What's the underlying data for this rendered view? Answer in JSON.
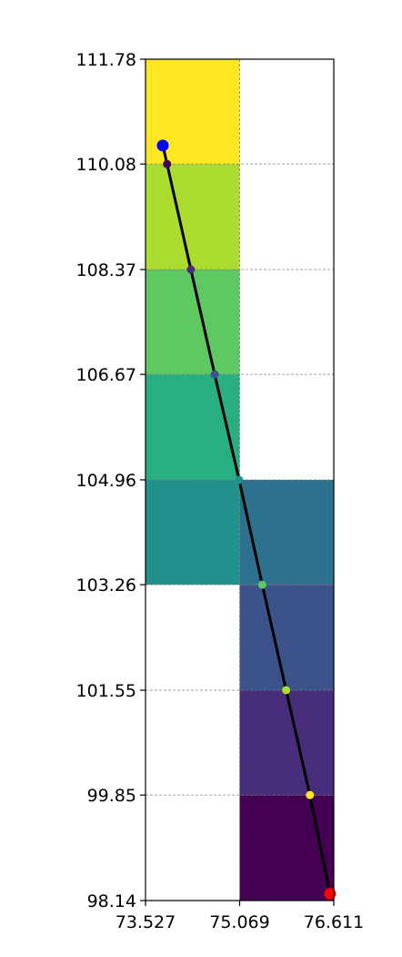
{
  "chart_data": {
    "type": "heatmap",
    "title": "",
    "xlabel": "",
    "ylabel": "",
    "xlim": [
      73.527,
      76.611
    ],
    "ylim": [
      98.14,
      111.78
    ],
    "x_ticks": [
      "73.527",
      "75.069",
      "76.611"
    ],
    "y_ticks": [
      "98.14",
      "99.85",
      "101.55",
      "103.26",
      "104.96",
      "106.67",
      "108.37",
      "110.08",
      "111.78"
    ],
    "x_tick_values": [
      73.527,
      75.069,
      76.611
    ],
    "y_tick_values": [
      98.14,
      99.85,
      101.55,
      103.26,
      104.96,
      106.67,
      108.37,
      110.08,
      111.78
    ],
    "grid": true,
    "cells": [
      {
        "col": 0,
        "y_from": 110.08,
        "y_to": 111.78,
        "color": "#fde725"
      },
      {
        "col": 0,
        "y_from": 108.37,
        "y_to": 110.08,
        "color": "#addc30"
      },
      {
        "col": 0,
        "y_from": 106.67,
        "y_to": 108.37,
        "color": "#5ec962"
      },
      {
        "col": 0,
        "y_from": 104.96,
        "y_to": 106.67,
        "color": "#28ae80"
      },
      {
        "col": 0,
        "y_from": 103.26,
        "y_to": 104.96,
        "color": "#21918c"
      },
      {
        "col": 1,
        "y_from": 103.26,
        "y_to": 104.96,
        "color": "#2c728e"
      },
      {
        "col": 1,
        "y_from": 101.55,
        "y_to": 103.26,
        "color": "#3b528b"
      },
      {
        "col": 1,
        "y_from": 99.85,
        "y_to": 101.55,
        "color": "#472d7b"
      },
      {
        "col": 1,
        "y_from": 98.14,
        "y_to": 99.85,
        "color": "#440154"
      }
    ],
    "path": {
      "color": "#000000",
      "points": [
        {
          "x": 73.81,
          "y": 110.38
        },
        {
          "x": 73.88,
          "y": 110.08
        },
        {
          "x": 74.27,
          "y": 108.37
        },
        {
          "x": 74.66,
          "y": 106.67
        },
        {
          "x": 75.06,
          "y": 104.96
        },
        {
          "x": 75.44,
          "y": 103.26
        },
        {
          "x": 75.83,
          "y": 101.55
        },
        {
          "x": 76.22,
          "y": 99.85
        },
        {
          "x": 76.55,
          "y": 98.25
        }
      ]
    },
    "markers": [
      {
        "x": 73.88,
        "y": 110.08,
        "color": "#440154"
      },
      {
        "x": 74.27,
        "y": 108.37,
        "color": "#472d7b"
      },
      {
        "x": 74.66,
        "y": 106.67,
        "color": "#3b528b"
      },
      {
        "x": 75.06,
        "y": 104.96,
        "color": "#21918c"
      },
      {
        "x": 75.44,
        "y": 103.26,
        "color": "#5ec962"
      },
      {
        "x": 75.83,
        "y": 101.55,
        "color": "#addc30"
      },
      {
        "x": 76.22,
        "y": 99.85,
        "color": "#fde725"
      }
    ],
    "start_point": {
      "x": 73.81,
      "y": 110.38,
      "color": "#0000ff"
    },
    "end_point": {
      "x": 76.55,
      "y": 98.25,
      "color": "#ff0000"
    }
  }
}
